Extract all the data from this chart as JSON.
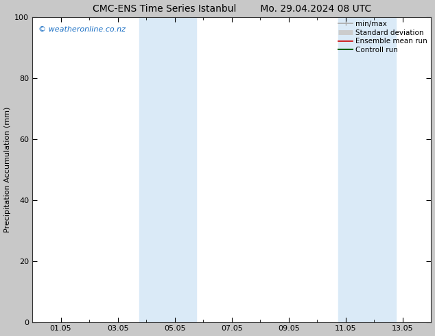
{
  "title_left": "CMC-ENS Time Series Istanbul",
  "title_right": "Mo. 29.04.2024 08 UTC",
  "ylabel": "Precipitation Accumulation (mm)",
  "xlabel": "",
  "xlim": [
    0,
    14
  ],
  "ylim": [
    0,
    100
  ],
  "yticks": [
    0,
    20,
    40,
    60,
    80,
    100
  ],
  "xtick_positions": [
    1,
    3,
    5,
    7,
    9,
    11,
    13
  ],
  "xtick_labels": [
    "01.05",
    "03.05",
    "05.05",
    "07.05",
    "09.05",
    "11.05",
    "13.05"
  ],
  "minor_xtick_positions": [
    0,
    1,
    2,
    3,
    4,
    5,
    6,
    7,
    8,
    9,
    10,
    11,
    12,
    13,
    14
  ],
  "shaded_bands": [
    {
      "xmin": 3.75,
      "xmax": 5.75
    },
    {
      "xmin": 10.75,
      "xmax": 12.75
    }
  ],
  "shaded_color": "#daeaf7",
  "background_color": "#c8c8c8",
  "plot_bg_color": "#ffffff",
  "watermark_text": "© weatheronline.co.nz",
  "watermark_color": "#1a6fc4",
  "legend_items": [
    {
      "label": "min/max",
      "color": "#aaaaaa",
      "lw": 1.2,
      "style": "errorbar"
    },
    {
      "label": "Standard deviation",
      "color": "#cccccc",
      "lw": 5,
      "style": "line"
    },
    {
      "label": "Ensemble mean run",
      "color": "#cc0000",
      "lw": 1.2,
      "style": "line"
    },
    {
      "label": "Controll run",
      "color": "#006400",
      "lw": 1.5,
      "style": "line"
    }
  ],
  "title_fontsize": 10,
  "tick_fontsize": 8,
  "ylabel_fontsize": 8,
  "watermark_fontsize": 8,
  "legend_fontsize": 7.5
}
